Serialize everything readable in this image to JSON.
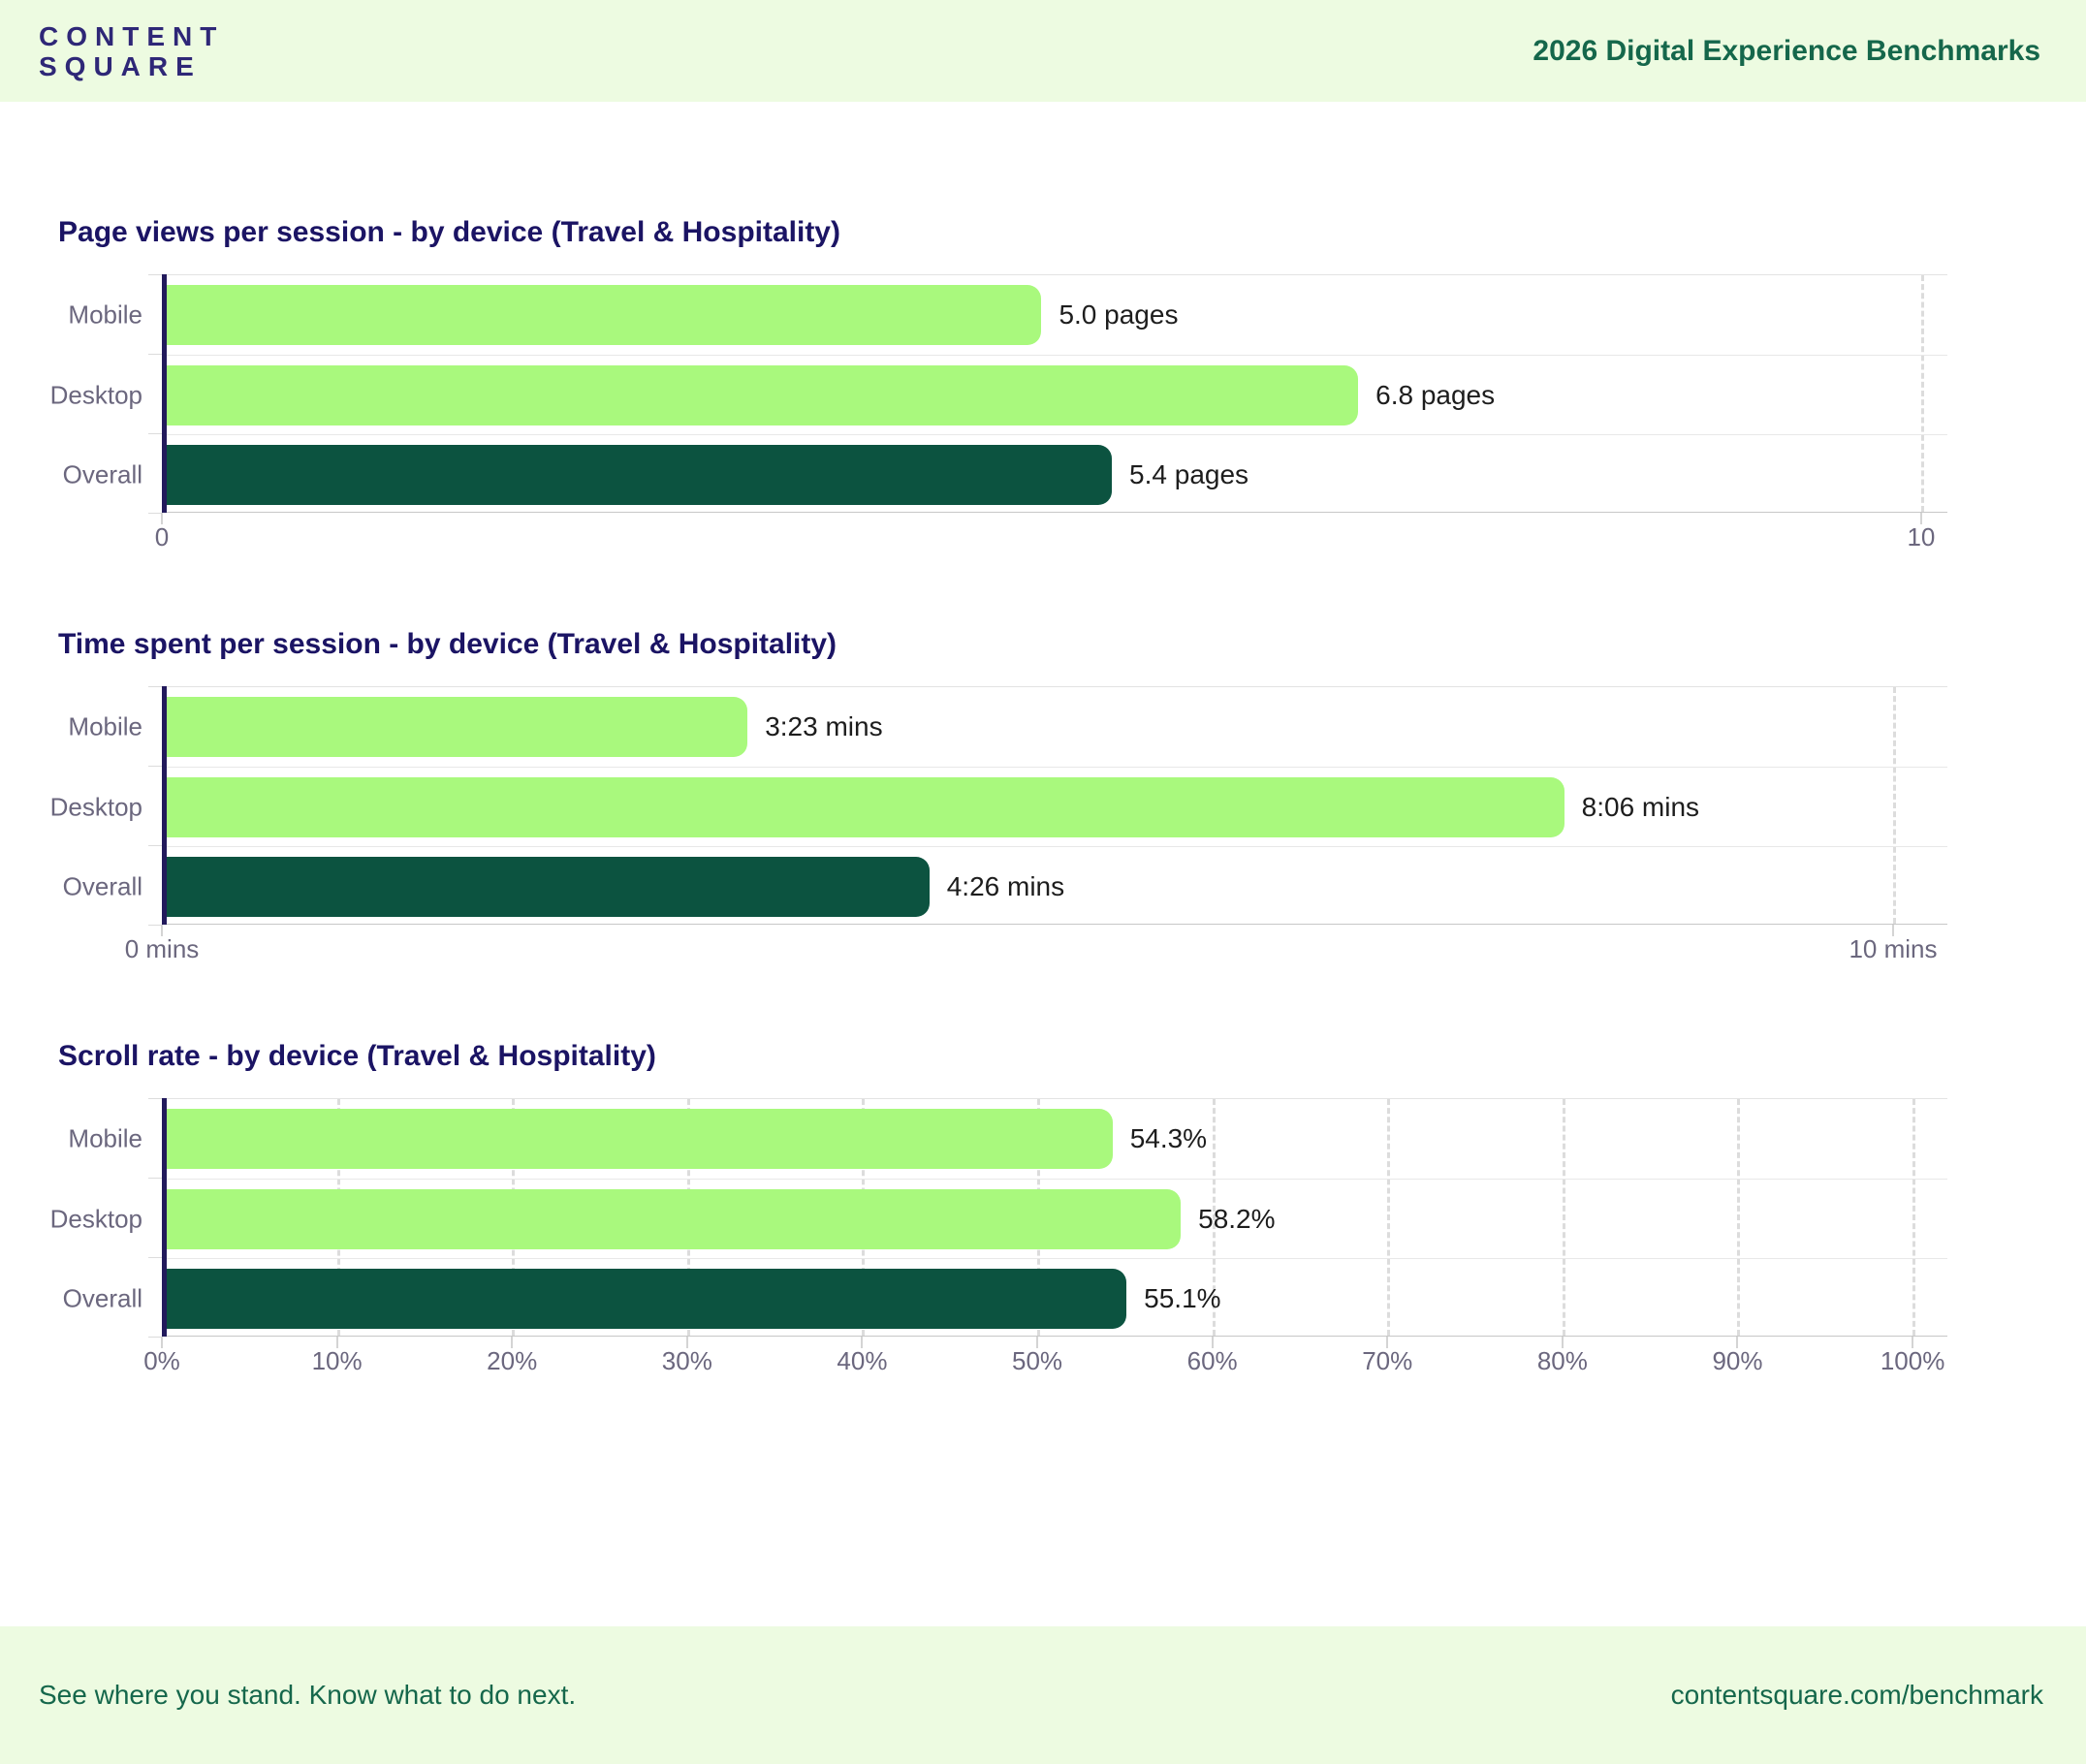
{
  "header": {
    "logo_line1": "CONTENT",
    "logo_line2": "SQUARE",
    "title": "2026 Digital Experience Benchmarks"
  },
  "footer": {
    "tagline": "See where you stand. Know what to do next.",
    "url": "contentsquare.com/benchmark"
  },
  "colors": {
    "header_bg": "#edfbe1",
    "logo_navy": "#2e2777",
    "header_title_green": "#15674b",
    "chart_title_navy": "#1b1464",
    "bar_light_green": "#a9f97d",
    "bar_dark_green": "#0c5340",
    "axis_navy": "#221a5c",
    "label_gray": "#6b677e",
    "value_text": "#1d1d1d"
  },
  "chart_data": [
    {
      "type": "bar",
      "orientation": "horizontal",
      "title": "Page views per session - by device (Travel & Hospitality)",
      "categories": [
        "Mobile",
        "Desktop",
        "Overall"
      ],
      "values": [
        5.0,
        6.8,
        5.4
      ],
      "value_labels": [
        "5.0 pages",
        "6.8 pages",
        "5.4 pages"
      ],
      "bar_styles": [
        "light",
        "light",
        "dark"
      ],
      "xlim": [
        0,
        10
      ],
      "x_ticks": [
        {
          "value": 0,
          "label": "0"
        },
        {
          "value": 10,
          "label": "10"
        }
      ],
      "gridline_values": [
        10
      ],
      "legend": "none",
      "grid": "dashed vertical at axis max"
    },
    {
      "type": "bar",
      "orientation": "horizontal",
      "title": "Time spent per session - by device (Travel & Hospitality)",
      "categories": [
        "Mobile",
        "Desktop",
        "Overall"
      ],
      "values": [
        3.383,
        8.1,
        4.433
      ],
      "value_labels": [
        "3:23 mins",
        "8:06 mins",
        "4:26 mins"
      ],
      "bar_styles": [
        "light",
        "light",
        "dark"
      ],
      "xlim": [
        0,
        10
      ],
      "x_ticks": [
        {
          "value": 0,
          "label": "0 mins"
        },
        {
          "value": 10,
          "label": "10 mins"
        }
      ],
      "gridline_values": [
        10
      ],
      "legend": "none",
      "grid": "dashed vertical at axis max"
    },
    {
      "type": "bar",
      "orientation": "horizontal",
      "title": "Scroll rate - by device (Travel & Hospitality)",
      "categories": [
        "Mobile",
        "Desktop",
        "Overall"
      ],
      "values": [
        54.3,
        58.2,
        55.1
      ],
      "value_labels": [
        "54.3%",
        "58.2%",
        "55.1%"
      ],
      "bar_styles": [
        "light",
        "light",
        "dark"
      ],
      "xlim": [
        0,
        100
      ],
      "x_ticks": [
        {
          "value": 0,
          "label": "0%"
        },
        {
          "value": 10,
          "label": "10%"
        },
        {
          "value": 20,
          "label": "20%"
        },
        {
          "value": 30,
          "label": "30%"
        },
        {
          "value": 40,
          "label": "40%"
        },
        {
          "value": 50,
          "label": "50%"
        },
        {
          "value": 60,
          "label": "60%"
        },
        {
          "value": 70,
          "label": "70%"
        },
        {
          "value": 80,
          "label": "80%"
        },
        {
          "value": 90,
          "label": "90%"
        },
        {
          "value": 100,
          "label": "100%"
        }
      ],
      "gridline_values": [
        10,
        20,
        30,
        40,
        50,
        60,
        70,
        80,
        90,
        100
      ],
      "legend": "none",
      "grid": "dashed vertical every 10%"
    }
  ]
}
